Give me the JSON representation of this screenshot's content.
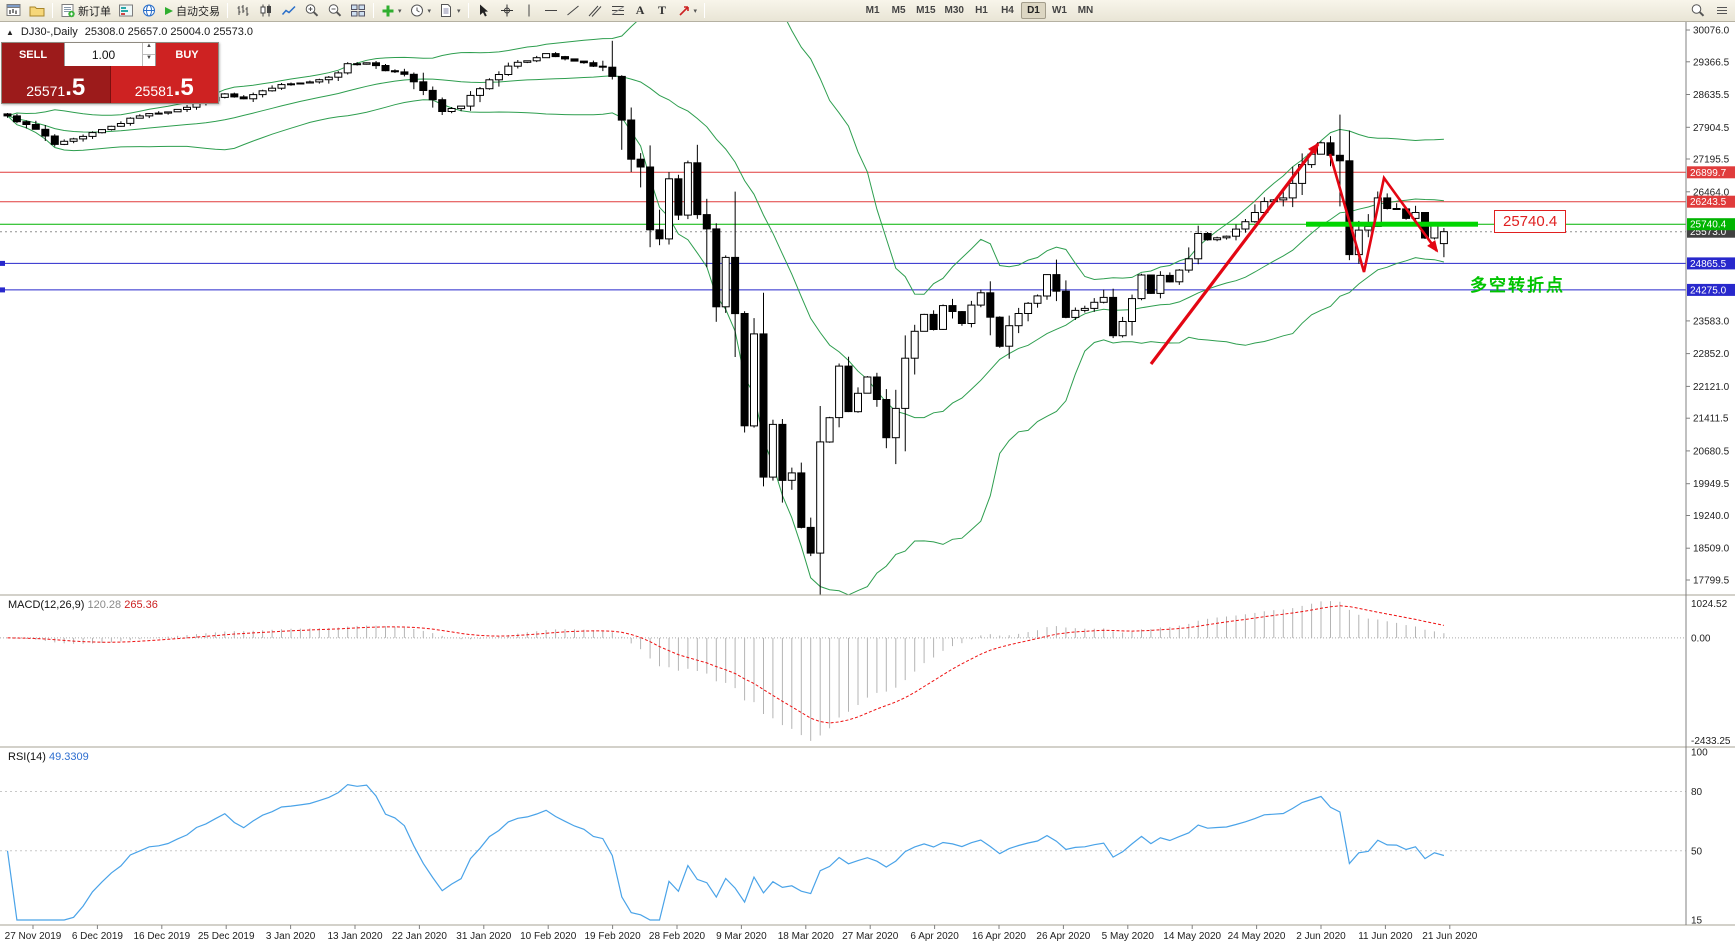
{
  "toolbar": {
    "new_order": "新订单",
    "auto_trading": "自动交易",
    "timeframes": [
      "M1",
      "M5",
      "M15",
      "M30",
      "H1",
      "H4",
      "D1",
      "W1",
      "MN"
    ],
    "active_timeframe": "D1"
  },
  "chart": {
    "symbol_title": "DJ30-,Daily",
    "ohlc": "25308.0 25657.0 25004.0 25573.0",
    "trade_panel": {
      "sell_label": "SELL",
      "buy_label": "BUY",
      "volume": "1.00",
      "sell_price_main": "25571",
      "sell_price_frac": ".5",
      "buy_price_main": "25581",
      "buy_price_frac": ".5"
    },
    "annotation_price_label": "25740.4",
    "annotation_text": "多空转折点"
  },
  "macd": {
    "label": "MACD(12,26,9)",
    "value_main": "120.28",
    "value_signal": "265.36",
    "axis_labels": [
      "1024.52",
      "0.00",
      "-2433.25"
    ]
  },
  "rsi": {
    "label": "RSI(14)",
    "value": "49.3309",
    "axis_labels": [
      100,
      80,
      50,
      15
    ]
  },
  "chart_data": {
    "type": "candlestick",
    "symbol": "DJ30-",
    "timeframe": "Daily",
    "bar_count": 153,
    "price_range": [
      17799.5,
      30076.0
    ],
    "price_axis_ticks": [
      30076.0,
      29366.5,
      28635.5,
      27904.5,
      27195.5,
      26464.0,
      23583.0,
      22852.0,
      22121.0,
      21411.5,
      20680.5,
      19949.5,
      19240.0,
      18509.0,
      17799.5
    ],
    "x_tick_labels": [
      "27 Nov 2019",
      "6 Dec 2019",
      "16 Dec 2019",
      "25 Dec 2019",
      "3 Jan 2020",
      "13 Jan 2020",
      "22 Jan 2020",
      "31 Jan 2020",
      "10 Feb 2020",
      "19 Feb 2020",
      "28 Feb 2020",
      "9 Mar 2020",
      "18 Mar 2020",
      "27 Mar 2020",
      "6 Apr 2020",
      "16 Apr 2020",
      "26 Apr 2020",
      "5 May 2020",
      "14 May 2020",
      "24 May 2020",
      "2 Jun 2020",
      "11 Jun 2020",
      "21 Jun 2020"
    ],
    "last_bar_ohlc": [
      25308.0,
      25657.0,
      25004.0,
      25573.0
    ],
    "close_keypoints": [
      [
        0,
        28150
      ],
      [
        3,
        27850
      ],
      [
        5,
        27520
      ],
      [
        8,
        27690
      ],
      [
        11,
        27920
      ],
      [
        14,
        28170
      ],
      [
        18,
        28290
      ],
      [
        21,
        28510
      ],
      [
        23,
        28640
      ],
      [
        25,
        28540
      ],
      [
        27,
        28720
      ],
      [
        29,
        28870
      ],
      [
        31,
        28890
      ],
      [
        34,
        29010
      ],
      [
        36,
        29300
      ],
      [
        38,
        29350
      ],
      [
        40,
        29180
      ],
      [
        42,
        29100
      ],
      [
        44,
        28730
      ],
      [
        46,
        28250
      ],
      [
        48,
        28400
      ],
      [
        50,
        28810
      ],
      [
        53,
        29280
      ],
      [
        55,
        29400
      ],
      [
        57,
        29550
      ],
      [
        59,
        29420
      ],
      [
        61,
        29340
      ],
      [
        63,
        29220
      ],
      [
        64,
        28990
      ],
      [
        65,
        27960
      ],
      [
        66,
        27080
      ],
      [
        67,
        26960
      ],
      [
        68,
        25770
      ],
      [
        69,
        25410
      ],
      [
        70,
        26700
      ],
      [
        71,
        25920
      ],
      [
        72,
        27090
      ],
      [
        73,
        26120
      ],
      [
        74,
        25860
      ],
      [
        75,
        23850
      ],
      [
        76,
        25020
      ],
      [
        77,
        23550
      ],
      [
        78,
        21200
      ],
      [
        79,
        23190
      ],
      [
        80,
        20190
      ],
      [
        81,
        21240
      ],
      [
        82,
        19900
      ],
      [
        83,
        20090
      ],
      [
        84,
        19170
      ],
      [
        85,
        18590
      ],
      [
        86,
        20700
      ],
      [
        87,
        21200
      ],
      [
        88,
        22550
      ],
      [
        89,
        21640
      ],
      [
        90,
        21920
      ],
      [
        91,
        22330
      ],
      [
        92,
        21917
      ],
      [
        93,
        20940
      ],
      [
        94,
        21410
      ],
      [
        95,
        22680
      ],
      [
        96,
        23440
      ],
      [
        97,
        23720
      ],
      [
        98,
        23390
      ],
      [
        99,
        23950
      ],
      [
        101,
        23540
      ],
      [
        103,
        24240
      ],
      [
        105,
        23020
      ],
      [
        106,
        23510
      ],
      [
        107,
        23770
      ],
      [
        109,
        24130
      ],
      [
        110,
        24630
      ],
      [
        111,
        24350
      ],
      [
        112,
        23720
      ],
      [
        114,
        23880
      ],
      [
        116,
        24110
      ],
      [
        117,
        23250
      ],
      [
        118,
        23625
      ],
      [
        120,
        24600
      ],
      [
        121,
        24210
      ],
      [
        122,
        24575
      ],
      [
        123,
        24474
      ],
      [
        125,
        24995
      ],
      [
        126,
        25548
      ],
      [
        127,
        25383
      ],
      [
        129,
        25475
      ],
      [
        131,
        25743
      ],
      [
        133,
        26270
      ],
      [
        135,
        26282
      ],
      [
        137,
        27111
      ],
      [
        139,
        27572
      ],
      [
        140,
        27272
      ],
      [
        141,
        26990
      ],
      [
        142,
        25128
      ],
      [
        143,
        25605
      ],
      [
        144,
        25763
      ],
      [
        145,
        26290
      ],
      [
        146,
        26120
      ],
      [
        147,
        26080
      ],
      [
        148,
        25871
      ],
      [
        149,
        26025
      ],
      [
        150,
        25445
      ],
      [
        151,
        25706
      ],
      [
        152,
        25573
      ]
    ],
    "overlays": {
      "bollinger_bands": {
        "period": 20,
        "deviation": 2,
        "color": "#2e9e4f"
      },
      "horizontal_lines": [
        {
          "price": 26899.7,
          "color": "#e03c3c"
        },
        {
          "price": 26243.5,
          "color": "#e03c3c"
        },
        {
          "price": 25740.4,
          "color": "#00b400",
          "highlight": true
        },
        {
          "price": 24865.5,
          "color": "#2828cc",
          "handle": true
        },
        {
          "price": 24275.0,
          "color": "#2828cc",
          "handle": true
        }
      ],
      "current_price": 25573.0,
      "current_price_color": "#404040",
      "highlight_color": "#00d500",
      "trend_arrow_color": "#e30613"
    },
    "indicators": [
      {
        "name": "MACD",
        "params": [
          12,
          26,
          9
        ],
        "current_values": [
          120.28,
          265.36
        ],
        "scale_max": 1024.52,
        "scale_min": -2433.25
      },
      {
        "name": "RSI",
        "params": [
          14
        ],
        "current_value": 49.3309,
        "scale_max": 100,
        "scale_min": 15,
        "levels": [
          80,
          50
        ]
      }
    ]
  }
}
